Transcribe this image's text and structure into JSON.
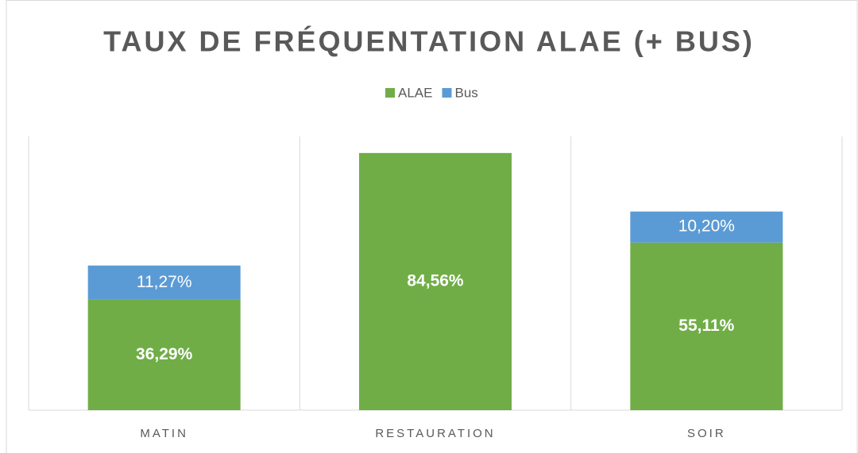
{
  "chart_data": {
    "type": "stacked_bar",
    "title": "TAUX DE FRÉQUENTATION ALAE (+ BUS)",
    "categories": [
      "MATIN",
      "RESTAURATION",
      "SOIR"
    ],
    "series": [
      {
        "name": "ALAE",
        "color": "#70ad47",
        "values": [
          36.29,
          84.56,
          55.11
        ],
        "value_labels": [
          "36,29%",
          "84,56%",
          "55,11%"
        ]
      },
      {
        "name": "Bus",
        "color": "#5b9bd5",
        "values": [
          11.27,
          null,
          10.2
        ],
        "value_labels": [
          "11,27%",
          null,
          "10,20%"
        ]
      }
    ],
    "ylim": [
      0,
      90
    ],
    "legend": "top"
  }
}
